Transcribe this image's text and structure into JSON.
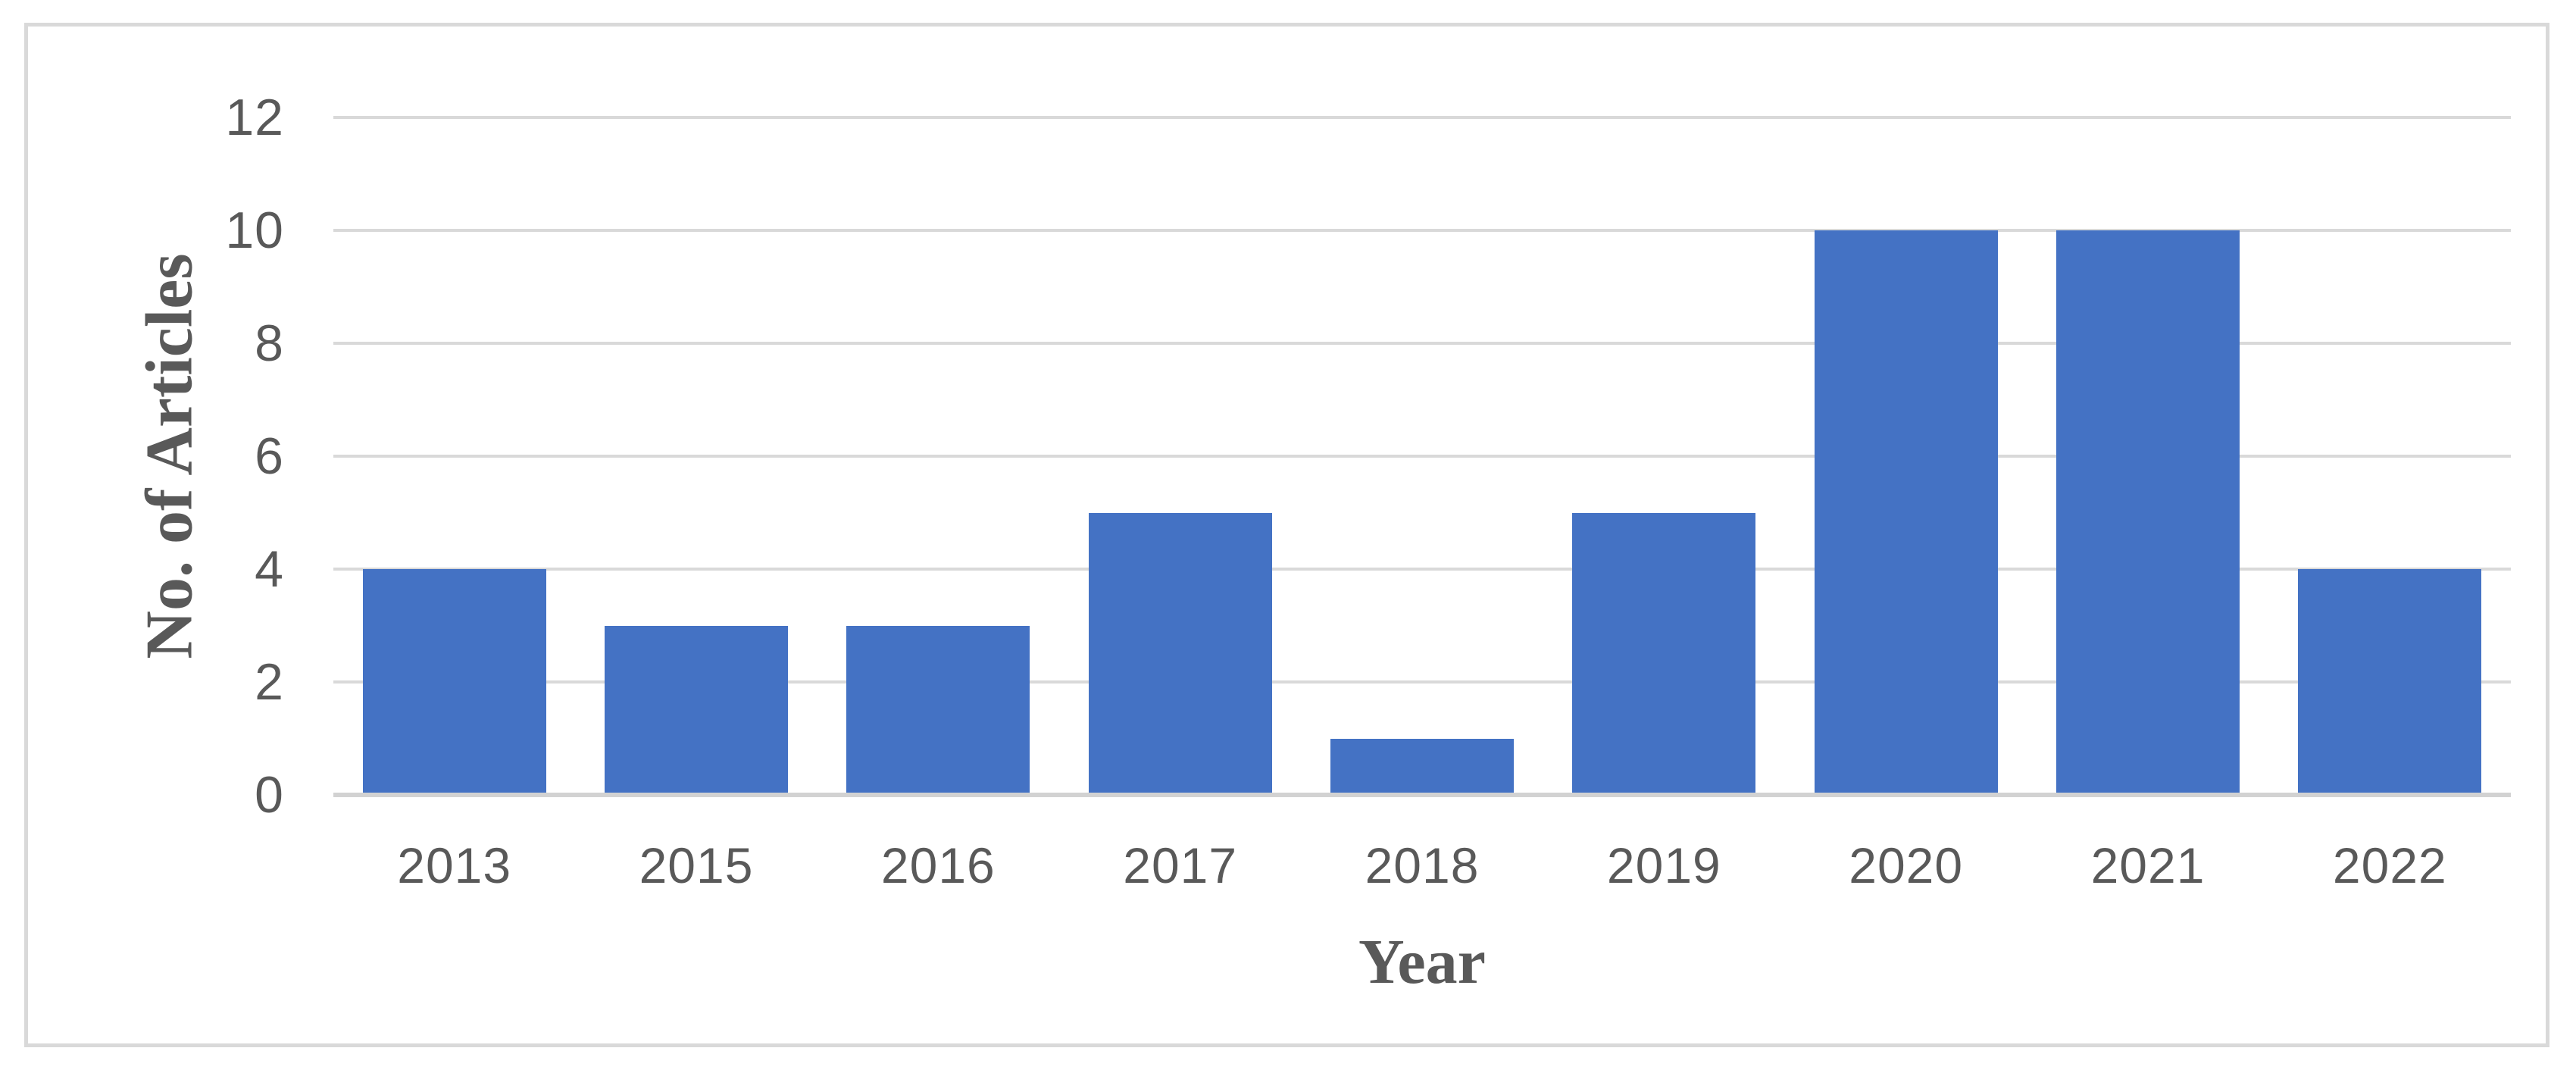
{
  "chart_data": {
    "type": "bar",
    "title": "",
    "xlabel": "Year",
    "ylabel": "No. of Articles",
    "categories": [
      "2013",
      "2015",
      "2016",
      "2017",
      "2018",
      "2019",
      "2020",
      "2021",
      "2022"
    ],
    "values": [
      4,
      3,
      3,
      5,
      1,
      5,
      10,
      10,
      4
    ],
    "ylim": [
      0,
      12
    ],
    "yticks": [
      0,
      2,
      4,
      6,
      8,
      10,
      12
    ],
    "grid": "horizontal",
    "legend": "none",
    "colors": {
      "bar": "#4472c4",
      "gridline": "#d9d9d9",
      "axis_line": "#d2d2d2",
      "text": "#595959",
      "frame_border": "#d9d9d9",
      "background": "#ffffff"
    }
  }
}
